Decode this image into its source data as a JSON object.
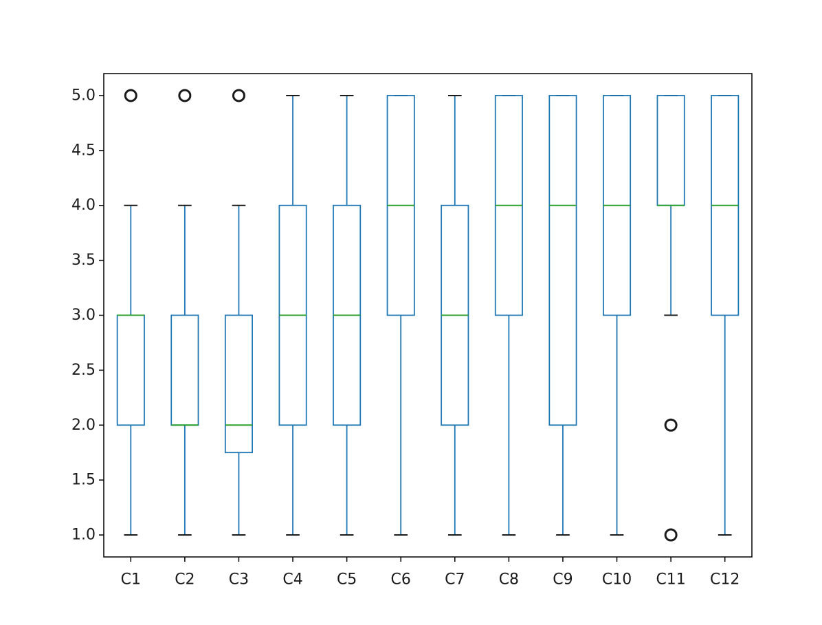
{
  "chart_data": {
    "type": "box",
    "title": "",
    "xlabel": "",
    "ylabel": "",
    "ylim": [
      0.8,
      5.2
    ],
    "yticks": [
      "1.0",
      "1.5",
      "2.0",
      "2.5",
      "3.0",
      "3.5",
      "4.0",
      "4.5",
      "5.0"
    ],
    "grid": false,
    "colors": {
      "box": "#1f77b4",
      "median": "#2ca02c",
      "whisker_cap": "#1a1a1a",
      "outlier": "#1a1a1a",
      "axes": "#000000"
    },
    "boxes": [
      {
        "label": "C1",
        "whislo": 1,
        "q1": 2,
        "med": 3,
        "q3": 3,
        "whishi": 4,
        "fliers": [
          5
        ]
      },
      {
        "label": "C2",
        "whislo": 1,
        "q1": 2,
        "med": 2,
        "q3": 3,
        "whishi": 4,
        "fliers": [
          5
        ]
      },
      {
        "label": "C3",
        "whislo": 1,
        "q1": 1.75,
        "med": 2,
        "q3": 3,
        "whishi": 4,
        "fliers": [
          5
        ]
      },
      {
        "label": "C4",
        "whislo": 1,
        "q1": 2,
        "med": 3,
        "q3": 4,
        "whishi": 5,
        "fliers": []
      },
      {
        "label": "C5",
        "whislo": 1,
        "q1": 2,
        "med": 3,
        "q3": 4,
        "whishi": 5,
        "fliers": []
      },
      {
        "label": "C6",
        "whislo": 1,
        "q1": 3,
        "med": 4,
        "q3": 5,
        "whishi": 5,
        "fliers": []
      },
      {
        "label": "C7",
        "whislo": 1,
        "q1": 2,
        "med": 3,
        "q3": 4,
        "whishi": 5,
        "fliers": []
      },
      {
        "label": "C8",
        "whislo": 1,
        "q1": 3,
        "med": 4,
        "q3": 5,
        "whishi": 5,
        "fliers": []
      },
      {
        "label": "C9",
        "whislo": 1,
        "q1": 2,
        "med": 4,
        "q3": 5,
        "whishi": 5,
        "fliers": []
      },
      {
        "label": "C10",
        "whislo": 1,
        "q1": 3,
        "med": 4,
        "q3": 5,
        "whishi": 5,
        "fliers": []
      },
      {
        "label": "C11",
        "whislo": 3,
        "q1": 4,
        "med": 4,
        "q3": 5,
        "whishi": 5,
        "fliers": [
          2,
          1
        ]
      },
      {
        "label": "C12",
        "whislo": 1,
        "q1": 3,
        "med": 4,
        "q3": 5,
        "whishi": 5,
        "fliers": []
      }
    ]
  }
}
